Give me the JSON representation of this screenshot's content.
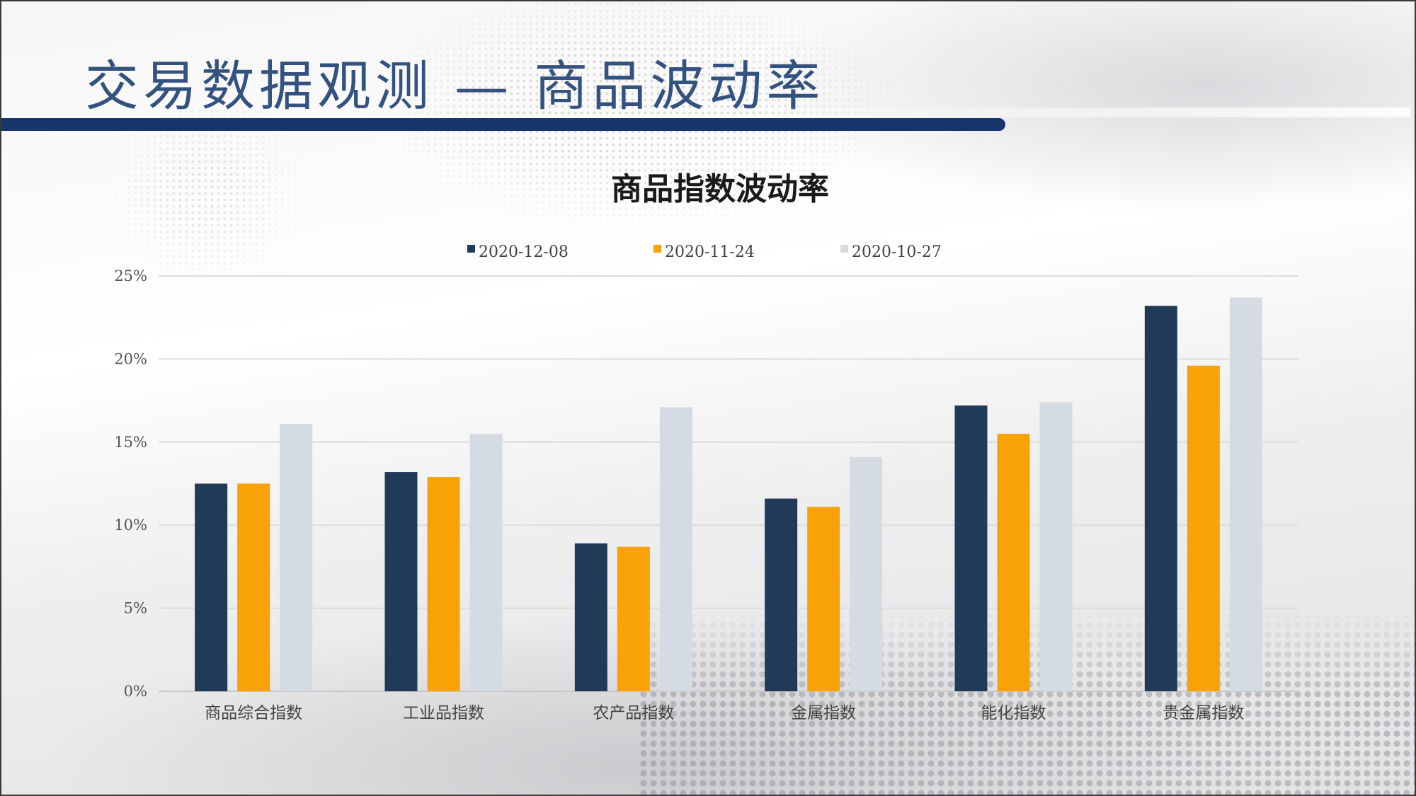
{
  "slide": {
    "title": "交易数据观测 — 商品波动率"
  },
  "chart_data": {
    "type": "bar",
    "title": "商品指数波动率",
    "xlabel": "",
    "ylabel": "",
    "categories": [
      "商品综合指数",
      "工业品指数",
      "农产品指数",
      "金属指数",
      "能化指数",
      "贵金属指数"
    ],
    "series": [
      {
        "name": "2020-12-08",
        "color": "#203a57",
        "values": [
          12.5,
          13.2,
          8.9,
          11.6,
          17.2,
          23.2
        ]
      },
      {
        "name": "2020-11-24",
        "color": "#f8a207",
        "values": [
          12.5,
          12.9,
          8.7,
          11.1,
          15.5,
          19.6
        ]
      },
      {
        "name": "2020-10-27",
        "color": "#d5dbe3",
        "values": [
          16.1,
          15.5,
          17.1,
          14.1,
          17.4,
          23.7
        ]
      }
    ],
    "yticks": [
      "0%",
      "5%",
      "10%",
      "15%",
      "20%",
      "25%"
    ],
    "ylim": [
      0,
      25
    ],
    "grid": true,
    "legend_position": "top"
  }
}
